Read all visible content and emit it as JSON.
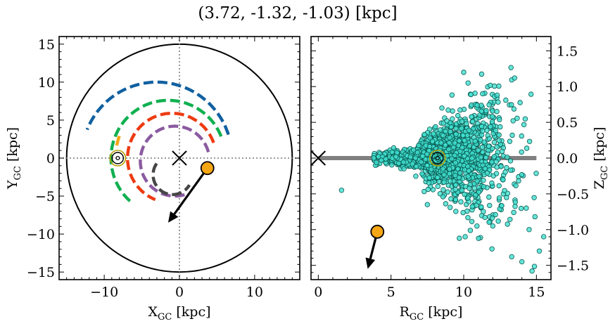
{
  "title": "(3.72, -1.32, -1.03) [kpc]",
  "colors": {
    "scatter_fill": "#40e0d0",
    "scatter_edge": "#0b5a52",
    "object_marker": "#f5a615",
    "sun_marker_ring": "#b8a000",
    "plane_line": "#808080"
  },
  "chart_data": [
    {
      "type": "scatter",
      "panel": "left",
      "xlabel_main": "X",
      "xlabel_sub": "GC",
      "xlabel_unit": " [kpc]",
      "ylabel_main": "Y",
      "ylabel_sub": "GC",
      "ylabel_unit": " [kpc]",
      "xlim": [
        -16,
        16
      ],
      "ylim": [
        -16,
        16
      ],
      "xticks": [
        -10,
        0,
        10
      ],
      "yticks": [
        -15,
        -10,
        -5,
        0,
        5,
        10,
        15
      ],
      "grid": false,
      "galaxy_boundary_radius": 15,
      "galactic_center": {
        "x": 0,
        "y": 0,
        "marker": "x"
      },
      "sun": {
        "x": -8.2,
        "y": 0,
        "marker": "circle-dot"
      },
      "object": {
        "x": 3.72,
        "y": -1.32
      },
      "velocity_arrow": {
        "from": [
          3.72,
          -1.32
        ],
        "to": [
          -1.5,
          -8.5
        ]
      },
      "spiral_arms": [
        {
          "color": "#1060a0",
          "radius": 10.0,
          "center": [
            -3.0,
            0
          ],
          "theta_deg": [
            18,
            158
          ]
        },
        {
          "color": "#10b050",
          "radius": 7.6,
          "center": [
            -1.5,
            0
          ],
          "theta_deg": [
            22,
            232
          ]
        },
        {
          "color": "#ee3a10",
          "radius": 5.9,
          "center": [
            -1.0,
            0
          ],
          "theta_deg": [
            20,
            248
          ]
        },
        {
          "color": "#8a5aa0",
          "radius": 4.6,
          "center": [
            -0.6,
            -0.4
          ],
          "theta_deg": [
            15,
            290
          ]
        },
        {
          "color": "#464646",
          "radius": 2.6,
          "center": [
            -0.9,
            -2.2
          ],
          "theta_deg": [
            145,
            330
          ]
        },
        {
          "color": "#f5a615",
          "radius": 8.5,
          "center": [
            0.0,
            0
          ],
          "theta_deg": [
            160,
            172
          ]
        }
      ]
    },
    {
      "type": "scatter",
      "panel": "right",
      "xlabel_main": "R",
      "xlabel_sub": "GC",
      "xlabel_unit": " [kpc]",
      "ylabel_main": "Z",
      "ylabel_sub": "GC",
      "ylabel_unit": " [kpc]",
      "xlim": [
        -0.5,
        16
      ],
      "ylim": [
        -1.7,
        1.7
      ],
      "xticks": [
        0,
        5,
        10,
        15
      ],
      "yticks": [
        -1.5,
        -1.0,
        -0.5,
        0.0,
        0.5,
        1.0,
        1.5
      ],
      "ytick_labels": [
        "−1.5",
        "−1.0",
        "−0.5",
        "0.0",
        "0.5",
        "1.0",
        "1.5"
      ],
      "grid": false,
      "galactic_plane": {
        "x": [
          0,
          15
        ],
        "z": 0
      },
      "galactic_center": {
        "x": 0,
        "y": 0,
        "marker": "x"
      },
      "sun": {
        "x": 8.2,
        "y": 0,
        "marker": "circle-dot"
      },
      "object": {
        "x": 4.06,
        "y": -1.03
      },
      "velocity_arrow": {
        "from": [
          4.06,
          -1.03
        ],
        "to": [
          3.4,
          -1.55
        ]
      },
      "stars_summary": {
        "count": 1600,
        "r_range": [
          1.5,
          15.5
        ],
        "z_spread": "flaring with R"
      },
      "stars_highlight": [
        {
          "x": 10.0,
          "y": 1.2
        },
        {
          "x": 13.5,
          "y": 1.12
        },
        {
          "x": 10.3,
          "y": 1.05
        },
        {
          "x": 11.3,
          "y": 0.9
        },
        {
          "x": 12.3,
          "y": 0.88
        },
        {
          "x": 8.5,
          "y": 0.7
        },
        {
          "x": 1.6,
          "y": -0.45
        },
        {
          "x": 7.5,
          "y": -0.65
        },
        {
          "x": 10.1,
          "y": -1.1
        },
        {
          "x": 12.0,
          "y": -0.95
        },
        {
          "x": 14.5,
          "y": -1.0
        },
        {
          "x": 15.5,
          "y": -1.1
        },
        {
          "x": 14.0,
          "y": -1.45
        },
        {
          "x": 14.7,
          "y": -1.58
        },
        {
          "x": 13.3,
          "y": -1.38
        },
        {
          "x": 14.3,
          "y": -0.7
        },
        {
          "x": 14.9,
          "y": -0.82
        },
        {
          "x": 15.2,
          "y": -1.3
        }
      ]
    }
  ]
}
